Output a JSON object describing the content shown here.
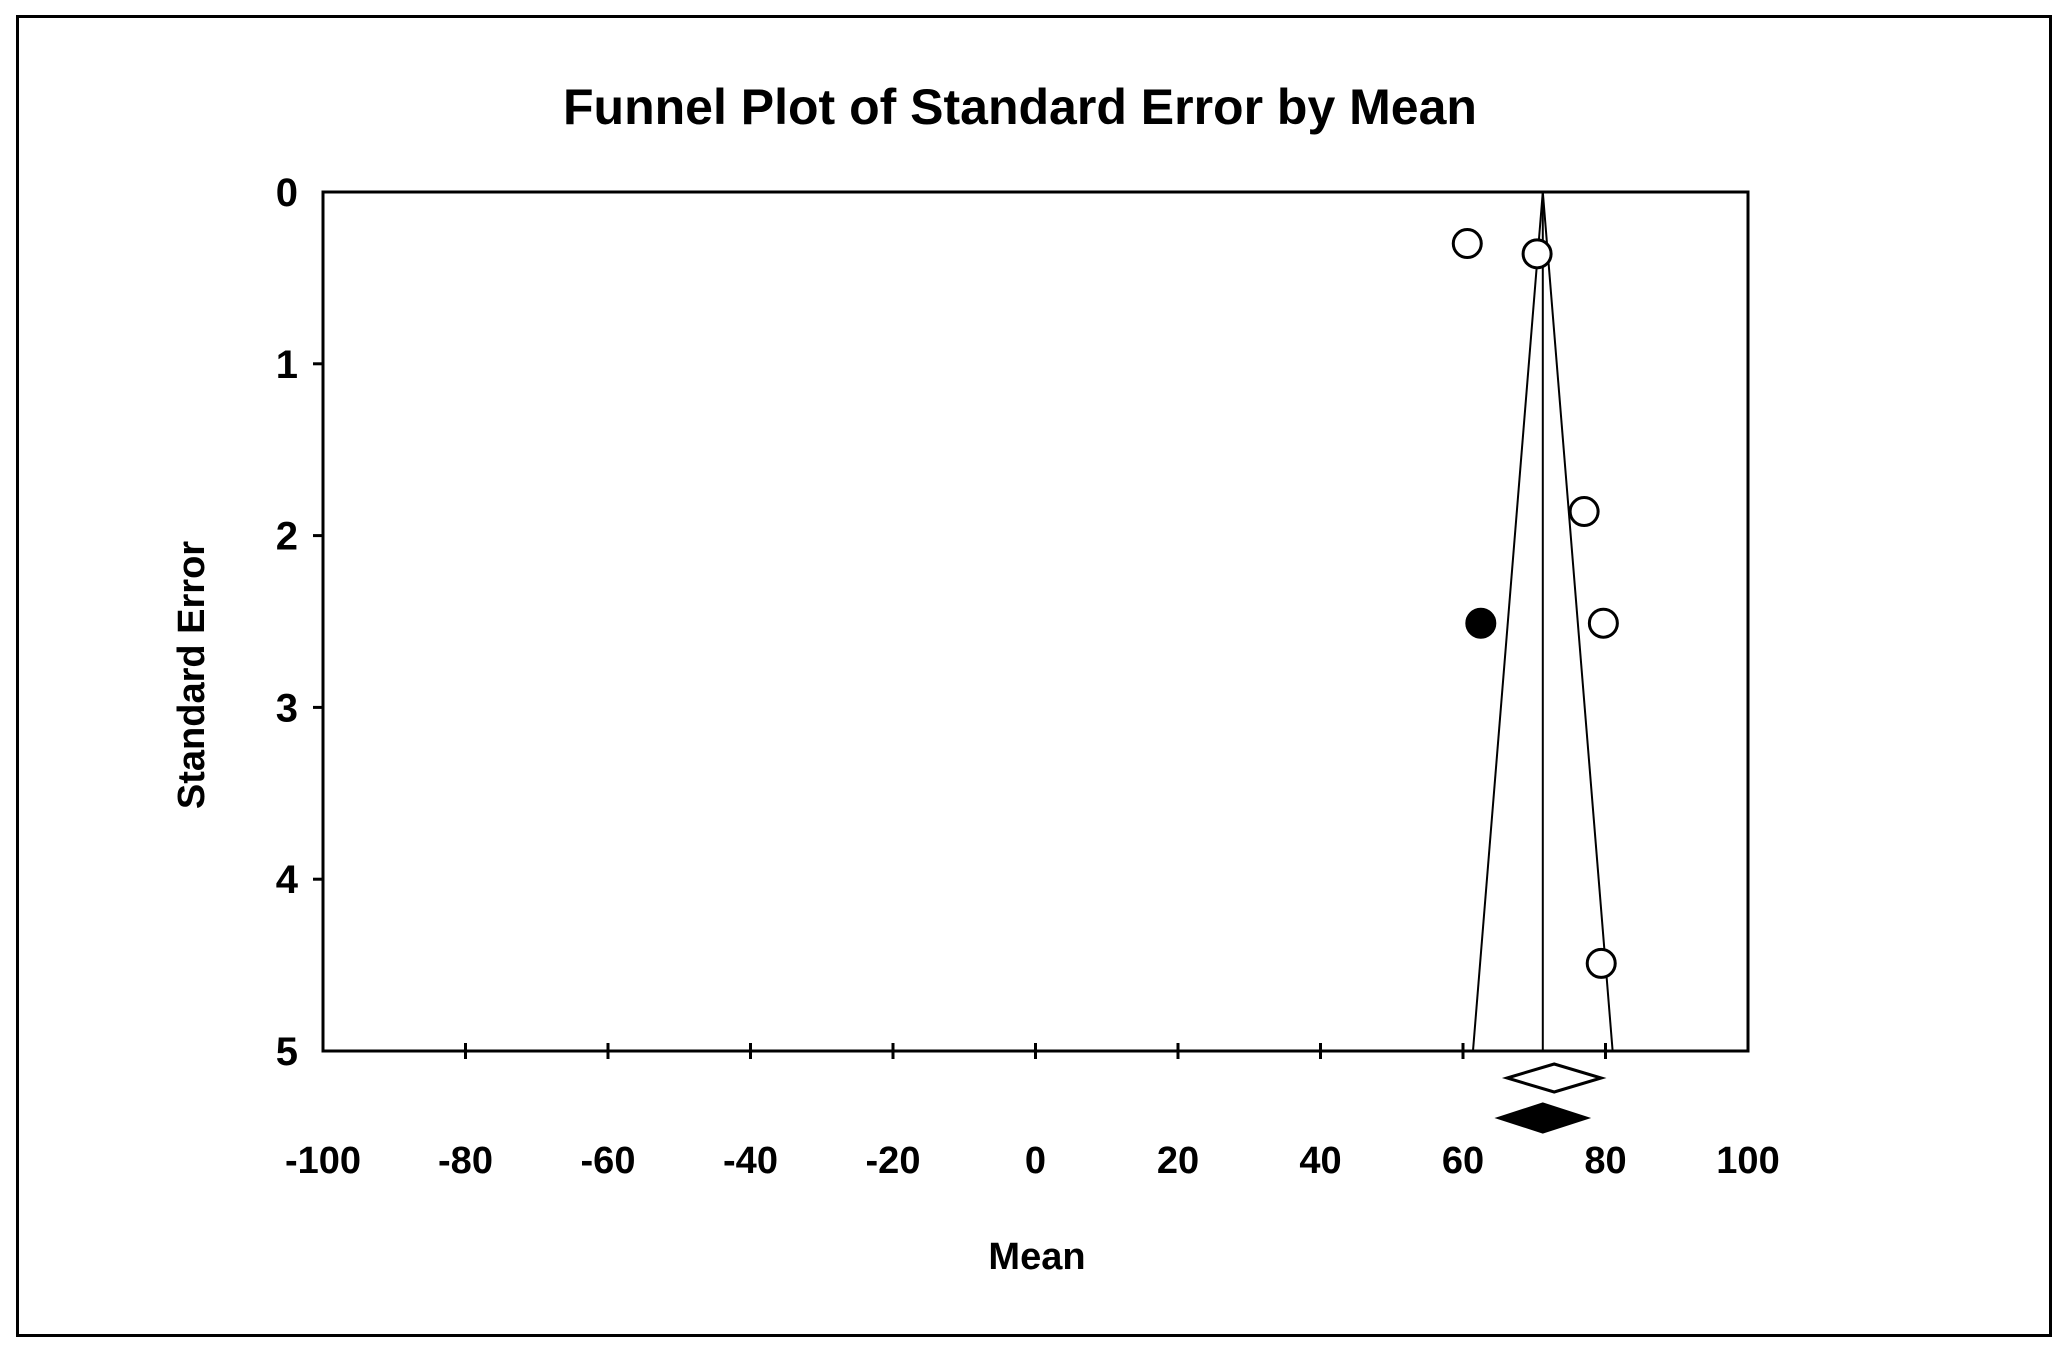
{
  "chart_data": {
    "type": "scatter",
    "subtype": "funnel-plot",
    "title": "Funnel Plot of Standard Error by Mean",
    "xlabel": "Mean",
    "ylabel": "Standard Error",
    "grid": false,
    "legend": false,
    "colors": {
      "foreground": "#000000",
      "background": "#ffffff"
    },
    "x_axis": {
      "min": -100,
      "max": 100,
      "tick_labels": [
        "-100",
        "-80",
        "-60",
        "-40",
        "-20",
        "0",
        "20",
        "40",
        "60",
        "80",
        "100"
      ],
      "tick_label_values": [
        -100,
        -80,
        -60,
        -40,
        -20,
        0,
        20,
        40,
        60,
        80,
        100
      ],
      "tick_mark_values": [
        -80,
        -60,
        -40,
        -20,
        0,
        20,
        40,
        60,
        80
      ]
    },
    "y_axis": {
      "min": 0,
      "max": 5,
      "inverted": true,
      "tick_labels": [
        "0",
        "1",
        "2",
        "3",
        "4",
        "5"
      ],
      "tick_label_values": [
        0,
        1,
        2,
        3,
        4,
        5
      ],
      "tick_mark_values": [
        1,
        2,
        3,
        4
      ]
    },
    "funnel": {
      "center_mean": 71.2,
      "ci_multiplier": 1.96,
      "se_top": 0,
      "se_bottom": 5,
      "base_mean_low": 61.4,
      "base_mean_high": 81.0
    },
    "points": [
      {
        "mean": 60.6,
        "se": 0.3,
        "filled": false
      },
      {
        "mean": 70.4,
        "se": 0.36,
        "filled": false
      },
      {
        "mean": 77.0,
        "se": 1.86,
        "filled": false
      },
      {
        "mean": 62.5,
        "se": 2.51,
        "filled": true
      },
      {
        "mean": 79.7,
        "se": 2.51,
        "filled": false
      },
      {
        "mean": 79.4,
        "se": 4.49,
        "filled": false
      }
    ],
    "diamonds": [
      {
        "name": "pooled-estimate-open",
        "mean_low": 66.2,
        "mean_center": 72.8,
        "mean_high": 79.4,
        "filled": false
      },
      {
        "name": "pooled-estimate-filled",
        "mean_low": 65.1,
        "mean_center": 71.2,
        "mean_high": 77.3,
        "filled": true
      }
    ]
  }
}
